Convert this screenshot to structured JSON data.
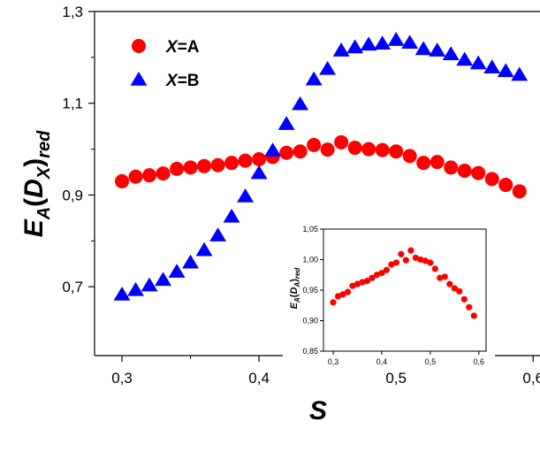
{
  "chart_data": [
    {
      "type": "scatter",
      "xlabel": "S",
      "ylabel": {
        "base": "E",
        "sub1": "A",
        "open": "(",
        "d": "D",
        "sub2": "X",
        "close": ")",
        "sub3": "red"
      },
      "xlim": [
        0.28,
        0.605
      ],
      "ylim": [
        0.55,
        1.3
      ],
      "x_ticks": [
        {
          "value": 0.3,
          "label": "0,3"
        },
        {
          "value": 0.4,
          "label": "0,4"
        },
        {
          "value": 0.5,
          "label": "0,5"
        },
        {
          "value": 0.6,
          "label": "0,6"
        }
      ],
      "y_ticks": [
        {
          "value": 0.7,
          "label": "0,7"
        },
        {
          "value": 0.9,
          "label": "0,9"
        },
        {
          "value": 1.1,
          "label": "1,1"
        },
        {
          "value": 1.3,
          "label": "1,3"
        }
      ],
      "legend_position": "top-left",
      "series": [
        {
          "name": "A",
          "legend_prefix": "X",
          "legend_suffix": "=A",
          "marker": "circle",
          "color": "#ff0000",
          "x": [
            0.3,
            0.31,
            0.32,
            0.33,
            0.34,
            0.35,
            0.36,
            0.37,
            0.38,
            0.39,
            0.4,
            0.41,
            0.42,
            0.43,
            0.44,
            0.45,
            0.46,
            0.47,
            0.48,
            0.49,
            0.5,
            0.51,
            0.52,
            0.53,
            0.54,
            0.55,
            0.56,
            0.57,
            0.58,
            0.59
          ],
          "y": [
            0.93,
            0.94,
            0.943,
            0.947,
            0.957,
            0.96,
            0.963,
            0.965,
            0.97,
            0.975,
            0.978,
            0.983,
            0.992,
            0.995,
            1.009,
            0.999,
            1.015,
            1.003,
            1.0,
            0.998,
            0.995,
            0.985,
            0.97,
            0.972,
            0.96,
            0.953,
            0.948,
            0.935,
            0.922,
            0.908
          ]
        },
        {
          "name": "B",
          "legend_prefix": "X",
          "legend_suffix": "=B",
          "marker": "triangle",
          "color": "#0000ff",
          "x": [
            0.3,
            0.31,
            0.32,
            0.33,
            0.34,
            0.35,
            0.36,
            0.37,
            0.38,
            0.39,
            0.4,
            0.41,
            0.42,
            0.43,
            0.44,
            0.45,
            0.46,
            0.47,
            0.48,
            0.49,
            0.5,
            0.51,
            0.52,
            0.53,
            0.54,
            0.55,
            0.56,
            0.57,
            0.58,
            0.59
          ],
          "y": [
            0.683,
            0.693,
            0.703,
            0.715,
            0.733,
            0.753,
            0.78,
            0.812,
            0.853,
            0.897,
            0.948,
            0.997,
            1.055,
            1.098,
            1.152,
            1.175,
            1.215,
            1.222,
            1.228,
            1.23,
            1.238,
            1.232,
            1.218,
            1.215,
            1.207,
            1.195,
            1.187,
            1.178,
            1.17,
            1.162
          ]
        }
      ]
    },
    {
      "type": "scatter",
      "inset": true,
      "ylabel": {
        "base": "E",
        "sub1": "A",
        "open": "(",
        "d": "D",
        "sub2": "A",
        "close": ")",
        "sub3": "red"
      },
      "xlim": [
        0.28,
        0.615
      ],
      "ylim": [
        0.85,
        1.05
      ],
      "x_ticks": [
        {
          "value": 0.3,
          "label": "0,3"
        },
        {
          "value": 0.4,
          "label": "0,4"
        },
        {
          "value": 0.5,
          "label": "0,5"
        },
        {
          "value": 0.6,
          "label": "0,6"
        }
      ],
      "y_ticks": [
        {
          "value": 0.85,
          "label": "0,85"
        },
        {
          "value": 0.9,
          "label": "0,90"
        },
        {
          "value": 0.95,
          "label": "0,95"
        },
        {
          "value": 1.0,
          "label": "1,00"
        },
        {
          "value": 1.05,
          "label": "1,05"
        }
      ],
      "series": [
        {
          "marker": "circle",
          "color": "#ff0000",
          "x": [
            0.3,
            0.31,
            0.32,
            0.33,
            0.34,
            0.35,
            0.36,
            0.37,
            0.38,
            0.39,
            0.4,
            0.41,
            0.42,
            0.43,
            0.44,
            0.45,
            0.46,
            0.47,
            0.48,
            0.49,
            0.5,
            0.51,
            0.52,
            0.53,
            0.54,
            0.55,
            0.56,
            0.57,
            0.58,
            0.59
          ],
          "y": [
            0.93,
            0.94,
            0.943,
            0.947,
            0.957,
            0.96,
            0.963,
            0.965,
            0.97,
            0.975,
            0.978,
            0.983,
            0.992,
            0.995,
            1.009,
            0.999,
            1.015,
            1.003,
            1.0,
            0.998,
            0.995,
            0.985,
            0.97,
            0.972,
            0.96,
            0.953,
            0.948,
            0.935,
            0.922,
            0.908
          ]
        }
      ]
    }
  ]
}
